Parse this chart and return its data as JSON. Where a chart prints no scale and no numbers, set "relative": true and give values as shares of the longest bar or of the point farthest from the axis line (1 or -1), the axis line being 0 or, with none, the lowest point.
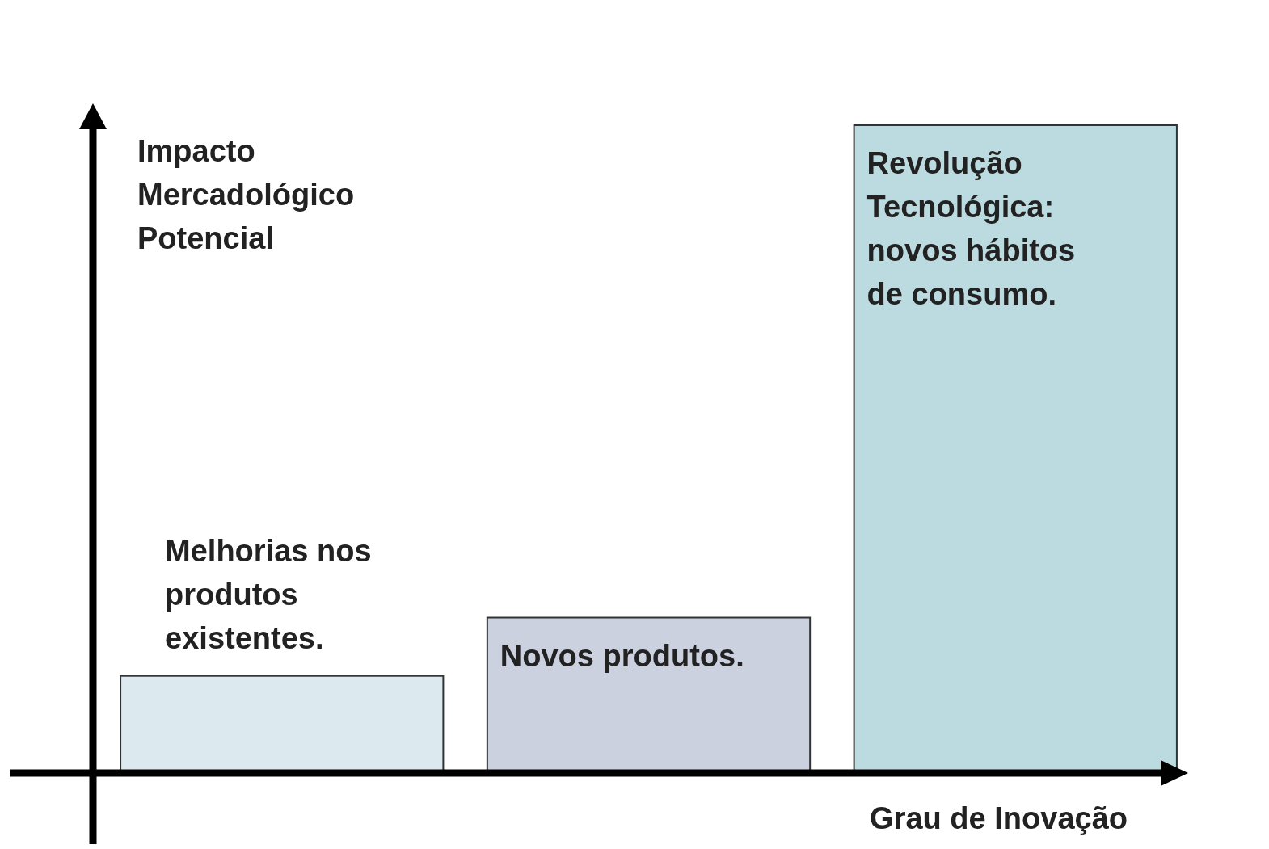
{
  "chart_data": {
    "type": "bar",
    "relative": true,
    "xlabel": "Grau de Inovação",
    "ylabel": "Impacto Mercadológico Potencial",
    "categories": [
      "Melhorias nos produtos existentes.",
      "Novos produtos.",
      "Revolução Tecnológica: novos hábitos de consumo."
    ],
    "values": [
      0.15,
      0.24,
      1
    ],
    "colors": [
      "#dce9ef",
      "#ccd1df",
      "#bcdbe0"
    ]
  }
}
